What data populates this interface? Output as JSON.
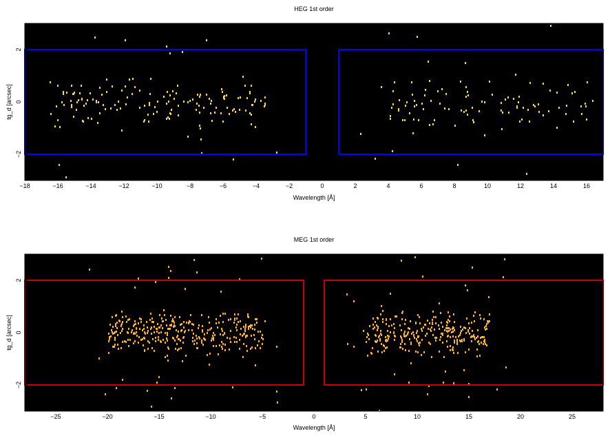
{
  "chart_data": [
    {
      "type": "heatmap",
      "title": "HEG 1st order",
      "xlabel": "Wavelength [Å]",
      "ylabel": "tg_d [arcsec]",
      "xlim": [
        -18,
        17
      ],
      "ylim": [
        -3,
        3
      ],
      "xticks": [
        -18,
        -16,
        -14,
        -12,
        -10,
        -8,
        -6,
        -4,
        -2,
        0,
        2,
        4,
        6,
        8,
        10,
        12,
        14,
        16
      ],
      "yticks": [
        -2,
        0,
        2
      ],
      "background": "#000000",
      "point_color": "#ffd84a",
      "region_color": "#0000ff",
      "regions": [
        {
          "x": [
            -18,
            -1
          ],
          "y": [
            -2,
            2
          ]
        },
        {
          "x": [
            1,
            17
          ],
          "y": [
            -2,
            2
          ]
        }
      ],
      "clusters": [
        {
          "x_range": [
            -16.5,
            -3.5
          ],
          "center_y": 0,
          "spread_y": 0.45,
          "count": 150,
          "outliers": 20
        },
        {
          "x_range": [
            3.5,
            16
          ],
          "center_y": 0,
          "spread_y": 0.45,
          "count": 90,
          "outliers": 22
        }
      ]
    },
    {
      "type": "heatmap",
      "title": "MEG 1st order",
      "xlabel": "Wavelength [Å]",
      "ylabel": "tg_d [arcsec]",
      "xlim": [
        -28,
        28
      ],
      "ylim": [
        -3,
        3
      ],
      "xticks": [
        -25,
        -20,
        -15,
        -10,
        -5,
        0,
        5,
        10,
        15,
        20,
        25
      ],
      "yticks": [
        -2,
        0,
        2
      ],
      "background": "#000000",
      "point_color": "#ffb32a",
      "region_color": "#cc0000",
      "regions": [
        {
          "x": [
            -28,
            -1
          ],
          "y": [
            -2,
            2
          ]
        },
        {
          "x": [
            1,
            28
          ],
          "y": [
            -2,
            2
          ]
        }
      ],
      "clusters": [
        {
          "x_range": [
            -20,
            -5
          ],
          "center_y": 0,
          "spread_y": 0.4,
          "count": 330,
          "outliers": 40
        },
        {
          "x_range": [
            5,
            17
          ],
          "center_y": 0,
          "spread_y": 0.4,
          "count": 280,
          "outliers": 40
        }
      ]
    }
  ]
}
